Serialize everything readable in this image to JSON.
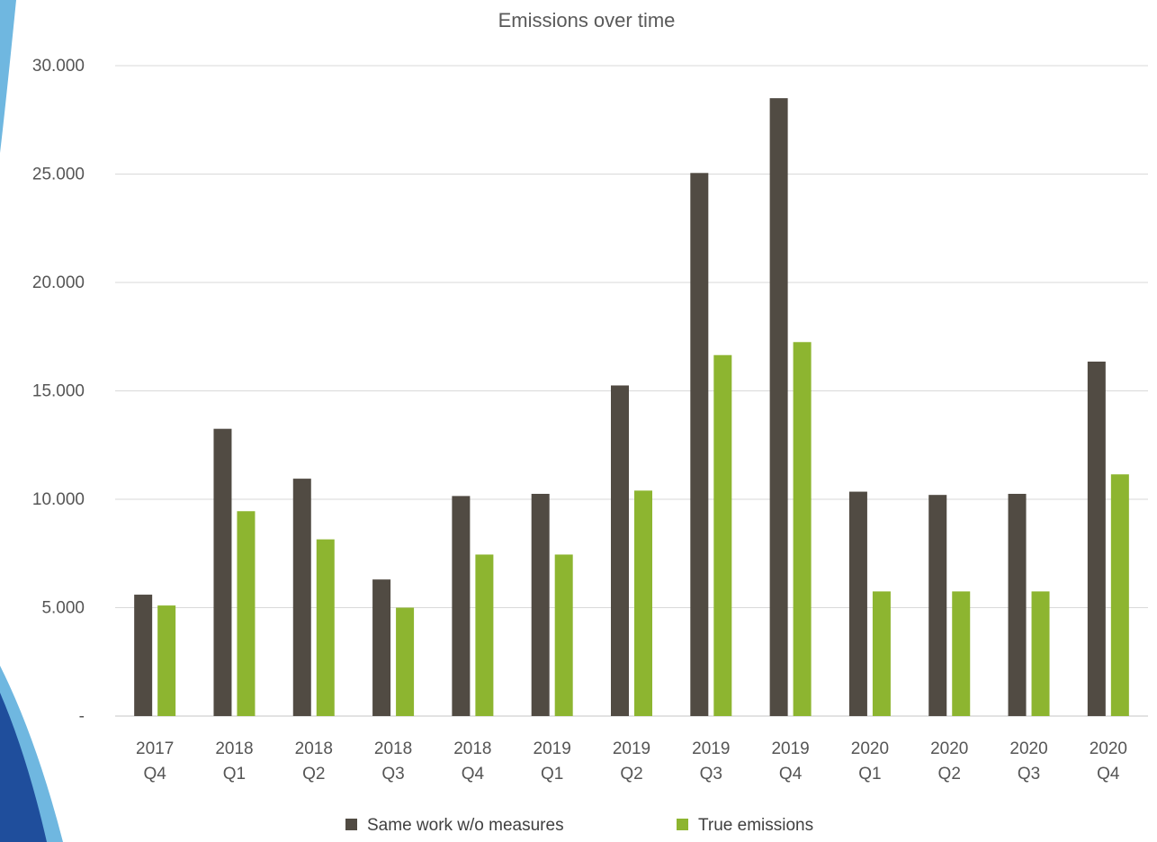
{
  "chart_data": {
    "type": "bar",
    "title": "Emissions over time",
    "xlabel": "",
    "ylabel": "",
    "categories": [
      [
        "2017",
        "Q4"
      ],
      [
        "2018",
        "Q1"
      ],
      [
        "2018",
        "Q2"
      ],
      [
        "2018",
        "Q3"
      ],
      [
        "2018",
        "Q4"
      ],
      [
        "2019",
        "Q1"
      ],
      [
        "2019",
        "Q2"
      ],
      [
        "2019",
        "Q3"
      ],
      [
        "2019",
        "Q4"
      ],
      [
        "2020",
        "Q1"
      ],
      [
        "2020",
        "Q2"
      ],
      [
        "2020",
        "Q3"
      ],
      [
        "2020",
        "Q4"
      ]
    ],
    "series": [
      {
        "name": "Same work w/o measures",
        "color": "#514B43",
        "values": [
          5600,
          13250,
          10950,
          6300,
          10150,
          10250,
          15250,
          25050,
          28500,
          10350,
          10200,
          10250,
          16350
        ]
      },
      {
        "name": "True emissions",
        "color": "#8DB530",
        "values": [
          5100,
          9450,
          8150,
          5000,
          7450,
          7450,
          10400,
          16650,
          17250,
          5750,
          5750,
          5750,
          11150
        ]
      }
    ],
    "ylim": [
      0,
      30000
    ],
    "yticks": [
      0,
      5000,
      10000,
      15000,
      20000,
      25000,
      30000
    ],
    "ytick_labels": [
      "-",
      "5.000",
      "10.000",
      "15.000",
      "20.000",
      "25.000",
      "30.000"
    ],
    "grid": true,
    "gridline_color": "#D9D9D9",
    "legend_position": "bottom"
  },
  "decoration": {
    "left_band_colors": [
      "#1F4E9C",
      "#6FB7E0"
    ]
  }
}
